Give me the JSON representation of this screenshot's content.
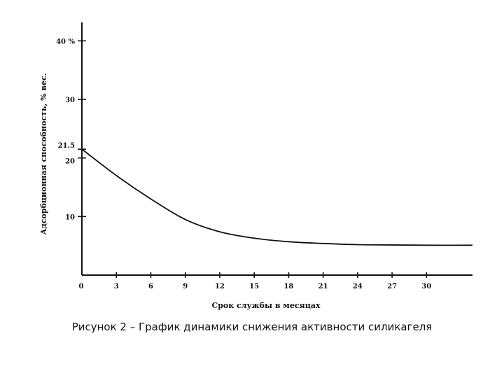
{
  "caption": "Рисунок 2 – График динамики снижения активности силикагеля",
  "chart_data": {
    "type": "line",
    "title": "",
    "xlabel": "Срок службы в месяцах",
    "ylabel": "Адсорбционная способность, % вес.",
    "x_ticks": [
      "0",
      "3",
      "6",
      "9",
      "12",
      "15",
      "18",
      "21",
      "24",
      "27",
      "30"
    ],
    "y_ticks": [
      "10",
      "20",
      "21.5",
      "30",
      "40 %"
    ],
    "xlim": [
      0,
      34
    ],
    "ylim": [
      0,
      41
    ],
    "grid": false,
    "series": [
      {
        "x": [
          0,
          3,
          6,
          9,
          12,
          15,
          18,
          21,
          24,
          27,
          30,
          34
        ],
        "y": [
          21.5,
          17,
          13,
          9.5,
          7.4,
          6.3,
          5.7,
          5.4,
          5.2,
          5.15,
          5.1,
          5.1
        ]
      }
    ],
    "colors": {
      "line": "#111111",
      "axis": "#111111"
    }
  }
}
